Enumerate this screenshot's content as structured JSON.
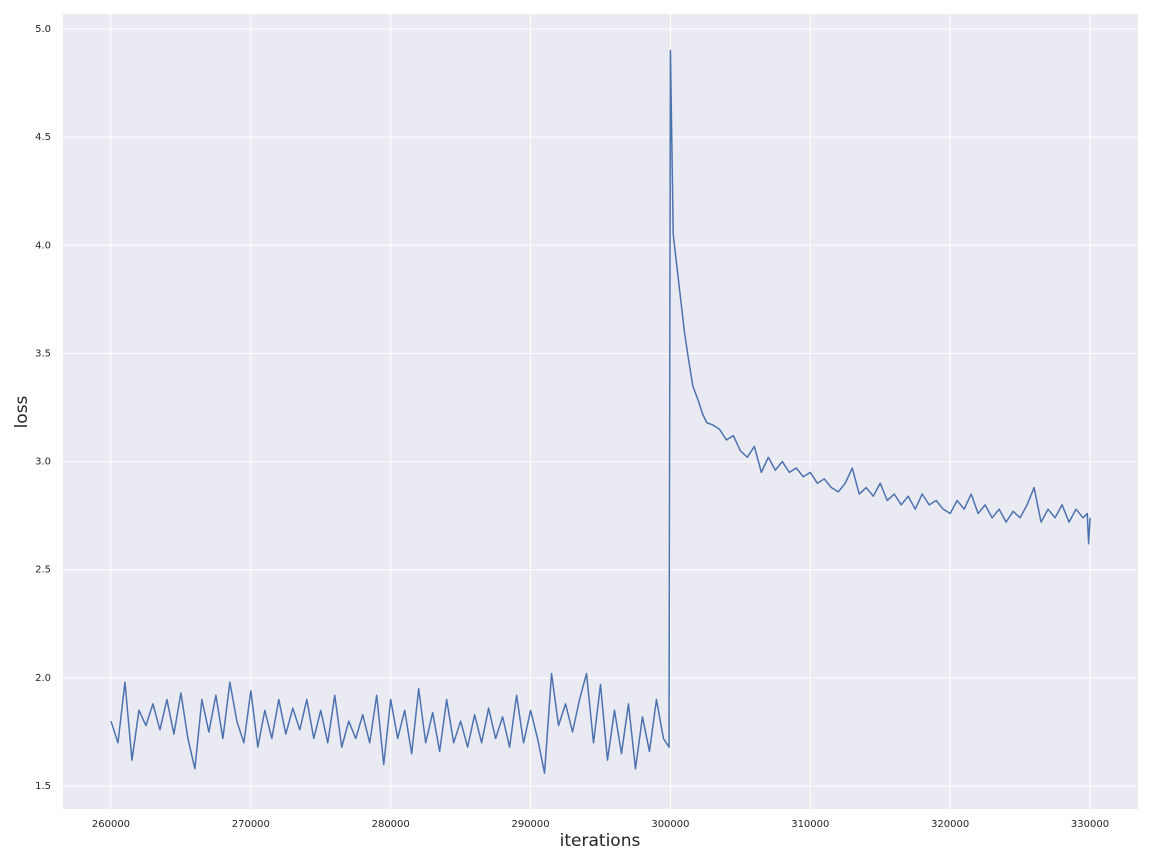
{
  "chart_data": {
    "type": "line",
    "xlabel": "iterations",
    "ylabel": "loss",
    "x": [
      260000,
      260500,
      261000,
      261500,
      262000,
      262500,
      263000,
      263500,
      264000,
      264500,
      265000,
      265500,
      266000,
      266500,
      267000,
      267500,
      268000,
      268500,
      269000,
      269500,
      270000,
      270500,
      271000,
      271500,
      272000,
      272500,
      273000,
      273500,
      274000,
      274500,
      275000,
      275500,
      276000,
      276500,
      277000,
      277500,
      278000,
      278500,
      279000,
      279500,
      280000,
      280500,
      281000,
      281500,
      282000,
      282500,
      283000,
      283500,
      284000,
      284500,
      285000,
      285500,
      286000,
      286500,
      287000,
      287500,
      288000,
      288500,
      289000,
      289500,
      290000,
      290500,
      291000,
      291500,
      292000,
      292500,
      293000,
      293500,
      294000,
      294500,
      295000,
      295500,
      296000,
      296500,
      297000,
      297500,
      298000,
      298500,
      299000,
      299500,
      299900,
      300000,
      300200,
      300500,
      301000,
      301300,
      301600,
      302000,
      302300,
      302600,
      303000,
      303500,
      304000,
      304500,
      305000,
      305500,
      306000,
      306500,
      307000,
      307500,
      308000,
      308500,
      309000,
      309500,
      310000,
      310500,
      311000,
      311500,
      312000,
      312500,
      313000,
      313500,
      314000,
      314500,
      315000,
      315500,
      316000,
      316500,
      317000,
      317500,
      318000,
      318500,
      319000,
      319500,
      320000,
      320500,
      321000,
      321500,
      322000,
      322500,
      323000,
      323500,
      324000,
      324500,
      325000,
      325500,
      326000,
      326500,
      327000,
      327500,
      328000,
      328500,
      329000,
      329500,
      329800,
      329900,
      330000
    ],
    "series": [
      {
        "name": "loss",
        "color": "#4c72b0",
        "values": [
          1.8,
          1.7,
          1.98,
          1.62,
          1.85,
          1.78,
          1.88,
          1.76,
          1.9,
          1.74,
          1.93,
          1.72,
          1.58,
          1.9,
          1.75,
          1.92,
          1.72,
          1.98,
          1.8,
          1.7,
          1.94,
          1.68,
          1.85,
          1.72,
          1.9,
          1.74,
          1.86,
          1.76,
          1.9,
          1.72,
          1.85,
          1.7,
          1.92,
          1.68,
          1.8,
          1.72,
          1.83,
          1.7,
          1.92,
          1.6,
          1.9,
          1.72,
          1.85,
          1.65,
          1.95,
          1.7,
          1.84,
          1.66,
          1.9,
          1.7,
          1.8,
          1.68,
          1.83,
          1.7,
          1.86,
          1.72,
          1.82,
          1.68,
          1.92,
          1.7,
          1.85,
          1.72,
          1.56,
          2.02,
          1.78,
          1.88,
          1.75,
          1.9,
          2.02,
          1.7,
          1.97,
          1.62,
          1.85,
          1.65,
          1.88,
          1.58,
          1.82,
          1.66,
          1.9,
          1.72,
          1.68,
          4.9,
          4.05,
          3.88,
          3.6,
          3.47,
          3.35,
          3.28,
          3.22,
          3.18,
          3.17,
          3.15,
          3.1,
          3.12,
          3.05,
          3.02,
          3.07,
          2.95,
          3.02,
          2.96,
          3.0,
          2.95,
          2.97,
          2.93,
          2.95,
          2.9,
          2.92,
          2.88,
          2.86,
          2.9,
          2.97,
          2.85,
          2.88,
          2.84,
          2.9,
          2.82,
          2.85,
          2.8,
          2.84,
          2.78,
          2.85,
          2.8,
          2.82,
          2.78,
          2.76,
          2.82,
          2.78,
          2.85,
          2.76,
          2.8,
          2.74,
          2.78,
          2.72,
          2.77,
          2.74,
          2.8,
          2.88,
          2.72,
          2.78,
          2.74,
          2.8,
          2.72,
          2.78,
          2.74,
          2.76,
          2.62,
          2.74
        ]
      }
    ],
    "xlim": [
      256570,
      333430
    ],
    "ylim": [
      1.394,
      5.069
    ],
    "xticks": [
      260000,
      270000,
      280000,
      290000,
      300000,
      310000,
      320000,
      330000
    ],
    "yticks": [
      {
        "value": 1.5,
        "label": "1.5"
      },
      {
        "value": 2,
        "label": "2.0"
      },
      {
        "value": 2.5,
        "label": "2.5"
      },
      {
        "value": 3,
        "label": "3.0"
      },
      {
        "value": 3.5,
        "label": "3.5"
      },
      {
        "value": 4,
        "label": "4.0"
      },
      {
        "value": 4.5,
        "label": "4.5"
      },
      {
        "value": 5,
        "label": "5.0"
      }
    ],
    "grid": true
  }
}
